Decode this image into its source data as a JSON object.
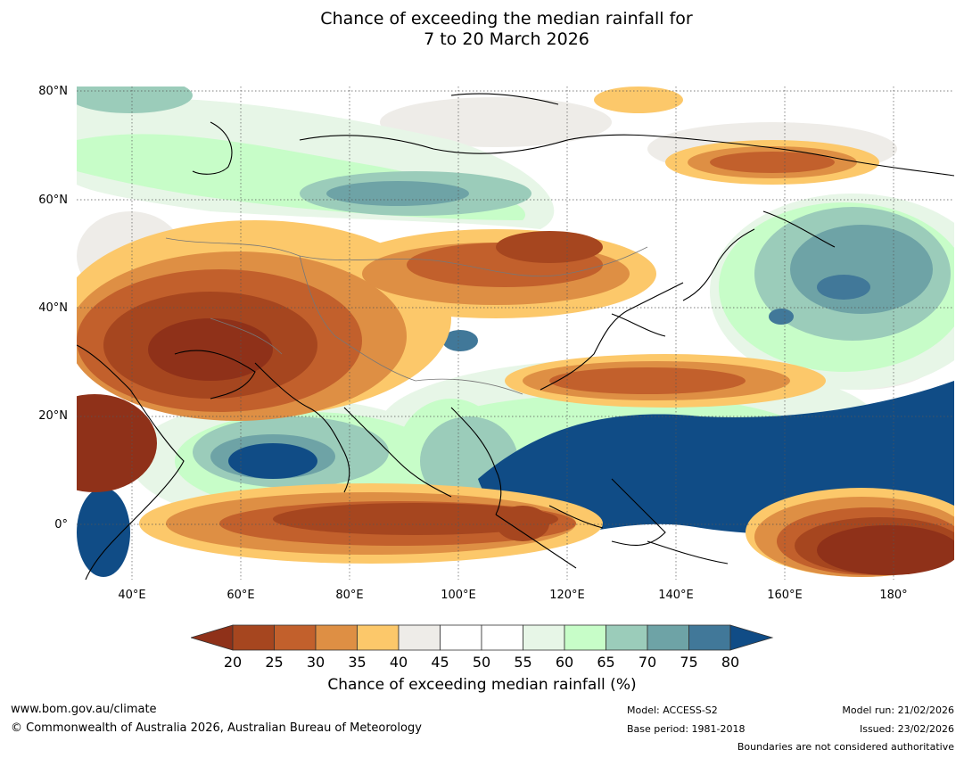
{
  "title": {
    "line1": "Chance of exceeding the median rainfall for",
    "line2": "7 to 20 March 2026"
  },
  "map": {
    "lat_labels": [
      "80°N",
      "60°N",
      "40°N",
      "20°N",
      "0°"
    ],
    "lon_labels": [
      "40°E",
      "60°E",
      "80°E",
      "100°E",
      "120°E",
      "140°E",
      "160°E",
      "180°"
    ],
    "extent": {
      "lon_min": 30,
      "lon_max": 191,
      "lat_min": -10,
      "lat_max": 80
    }
  },
  "colorbar": {
    "ticks": [
      "20",
      "25",
      "30",
      "35",
      "40",
      "45",
      "50",
      "55",
      "60",
      "65",
      "70",
      "75",
      "80"
    ],
    "colors": [
      "#a6461f",
      "#c2602c",
      "#de8f44",
      "#fcc86a",
      "#eeece8",
      "#ffffff",
      "#ffffff",
      "#e7f6e7",
      "#c7fdc8",
      "#9bccba",
      "#6ea3a6",
      "#417899"
    ],
    "under_color": "#8f3119",
    "over_color": "#104c86",
    "label": "Chance of exceeding median rainfall (%)"
  },
  "footer": {
    "website": "www.bom.gov.au/climate",
    "copyright": "© Commonwealth of Australia 2026, Australian Bureau of Meteorology",
    "model": "Model: ACCESS-S2",
    "base_period": "Base period: 1981-2018",
    "model_run": "Model run: 21/02/2026",
    "issued": "Issued: 23/02/2026",
    "disclaimer": "Boundaries are not considered authoritative"
  }
}
